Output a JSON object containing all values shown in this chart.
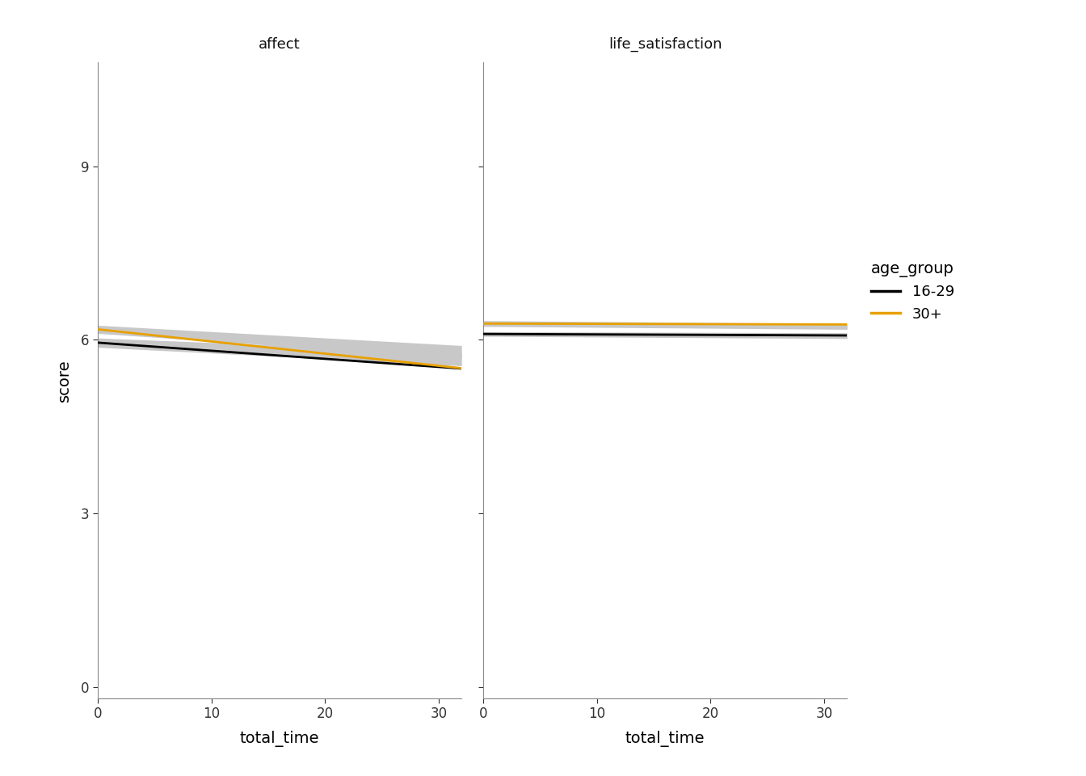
{
  "panels": [
    "affect",
    "life_satisfaction"
  ],
  "x_range": [
    0,
    32
  ],
  "x_ticks": [
    0,
    10,
    20,
    30
  ],
  "y_range": [
    -0.2,
    10.8
  ],
  "y_ticks": [
    0,
    3,
    6,
    9
  ],
  "xlabel": "total_time",
  "ylabel": "score",
  "legend_title": "age_group",
  "legend_entries": [
    "16-29",
    "30+"
  ],
  "line_colors": [
    "#000000",
    "#E8A000"
  ],
  "ci_color": "#C8C8C8",
  "panel_header_color": "#CCCCCC",
  "plot_bg_color": "#FFFFFF",
  "figure_bg_color": "#FFFFFF",
  "affect": {
    "young_intercept": 5.95,
    "young_slope": -0.014,
    "old_intercept": 6.18,
    "old_slope": -0.021,
    "young_ci_lo_start": 5.87,
    "young_ci_hi_start": 6.03,
    "young_ci_lo_end": 5.55,
    "young_ci_hi_end": 5.78,
    "old_ci_lo_start": 6.11,
    "old_ci_hi_start": 6.25,
    "old_ci_lo_end": 5.68,
    "old_ci_hi_end": 5.9
  },
  "life_satisfaction": {
    "young_intercept": 6.1,
    "young_slope": -0.0008,
    "old_intercept": 6.28,
    "old_slope": -0.0005,
    "young_ci_lo_start": 6.06,
    "young_ci_hi_start": 6.14,
    "young_ci_lo_end": 6.02,
    "young_ci_hi_end": 6.12,
    "old_ci_lo_start": 6.23,
    "old_ci_hi_start": 6.33,
    "old_ci_lo_end": 6.18,
    "old_ci_hi_end": 6.28
  }
}
